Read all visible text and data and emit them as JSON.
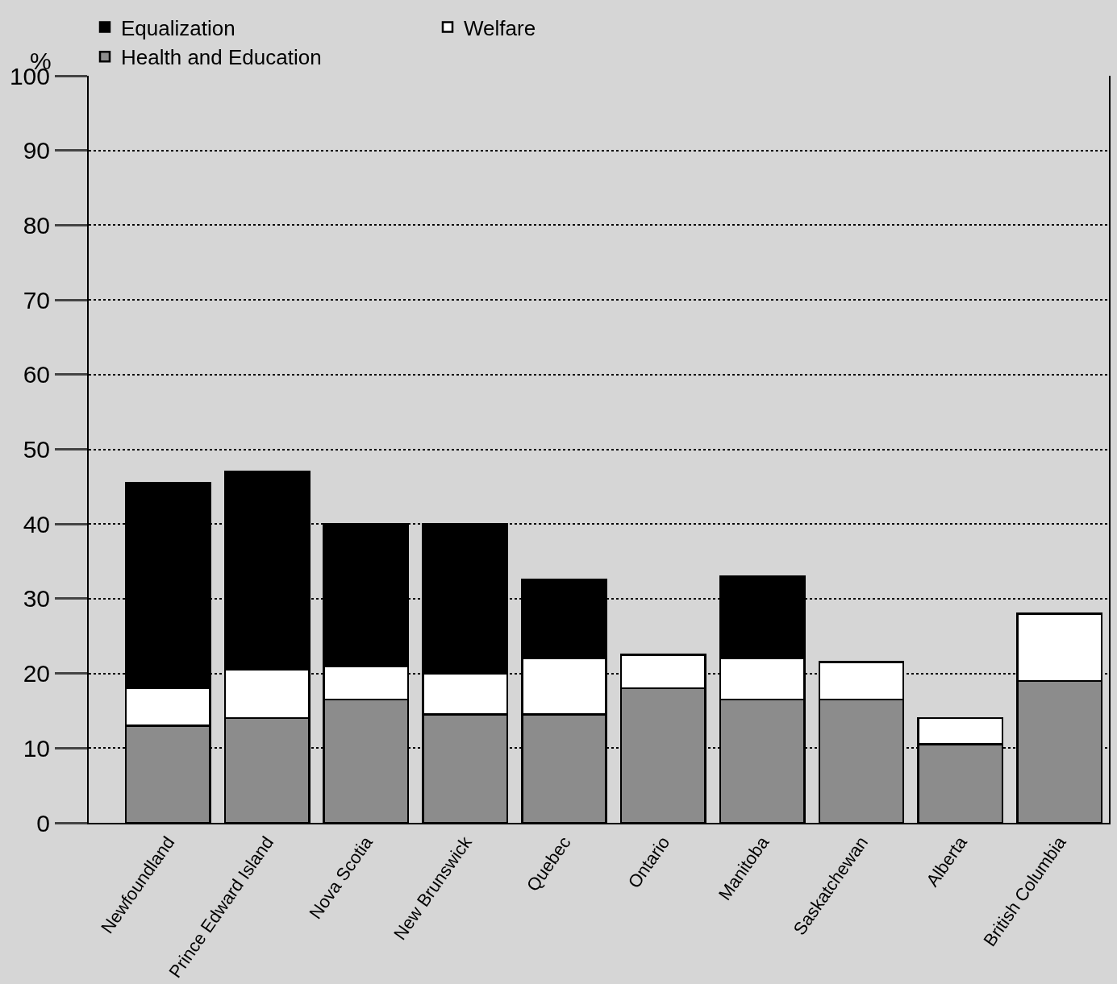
{
  "chart_data": {
    "type": "bar",
    "stacked": true,
    "ylabel": "%",
    "categories": [
      "Newfoundland",
      "Prince Edward Island",
      "Nova Scotia",
      "New Brunswick",
      "Quebec",
      "Ontario",
      "Manitoba",
      "Saskatchewan",
      "Alberta",
      "British Columbia"
    ],
    "series": [
      {
        "name": "Health and Education",
        "color": "#8c8c8c",
        "values": [
          13,
          14,
          16.5,
          14.5,
          14.5,
          18,
          16.5,
          16.5,
          10.5,
          19
        ]
      },
      {
        "name": "Welfare",
        "color": "#ffffff",
        "values": [
          5,
          6.5,
          4.5,
          5.5,
          7.5,
          4.5,
          5.5,
          5,
          3.5,
          9
        ]
      },
      {
        "name": "Equalization",
        "color": "#000000",
        "values": [
          27.5,
          26.5,
          19,
          20,
          10.5,
          null,
          11,
          null,
          null,
          null
        ]
      }
    ],
    "ylim": [
      0,
      100
    ],
    "yticks": [
      0,
      10,
      20,
      30,
      40,
      50,
      60,
      70,
      80,
      90,
      100
    ],
    "grid": "y",
    "legend": "top"
  }
}
